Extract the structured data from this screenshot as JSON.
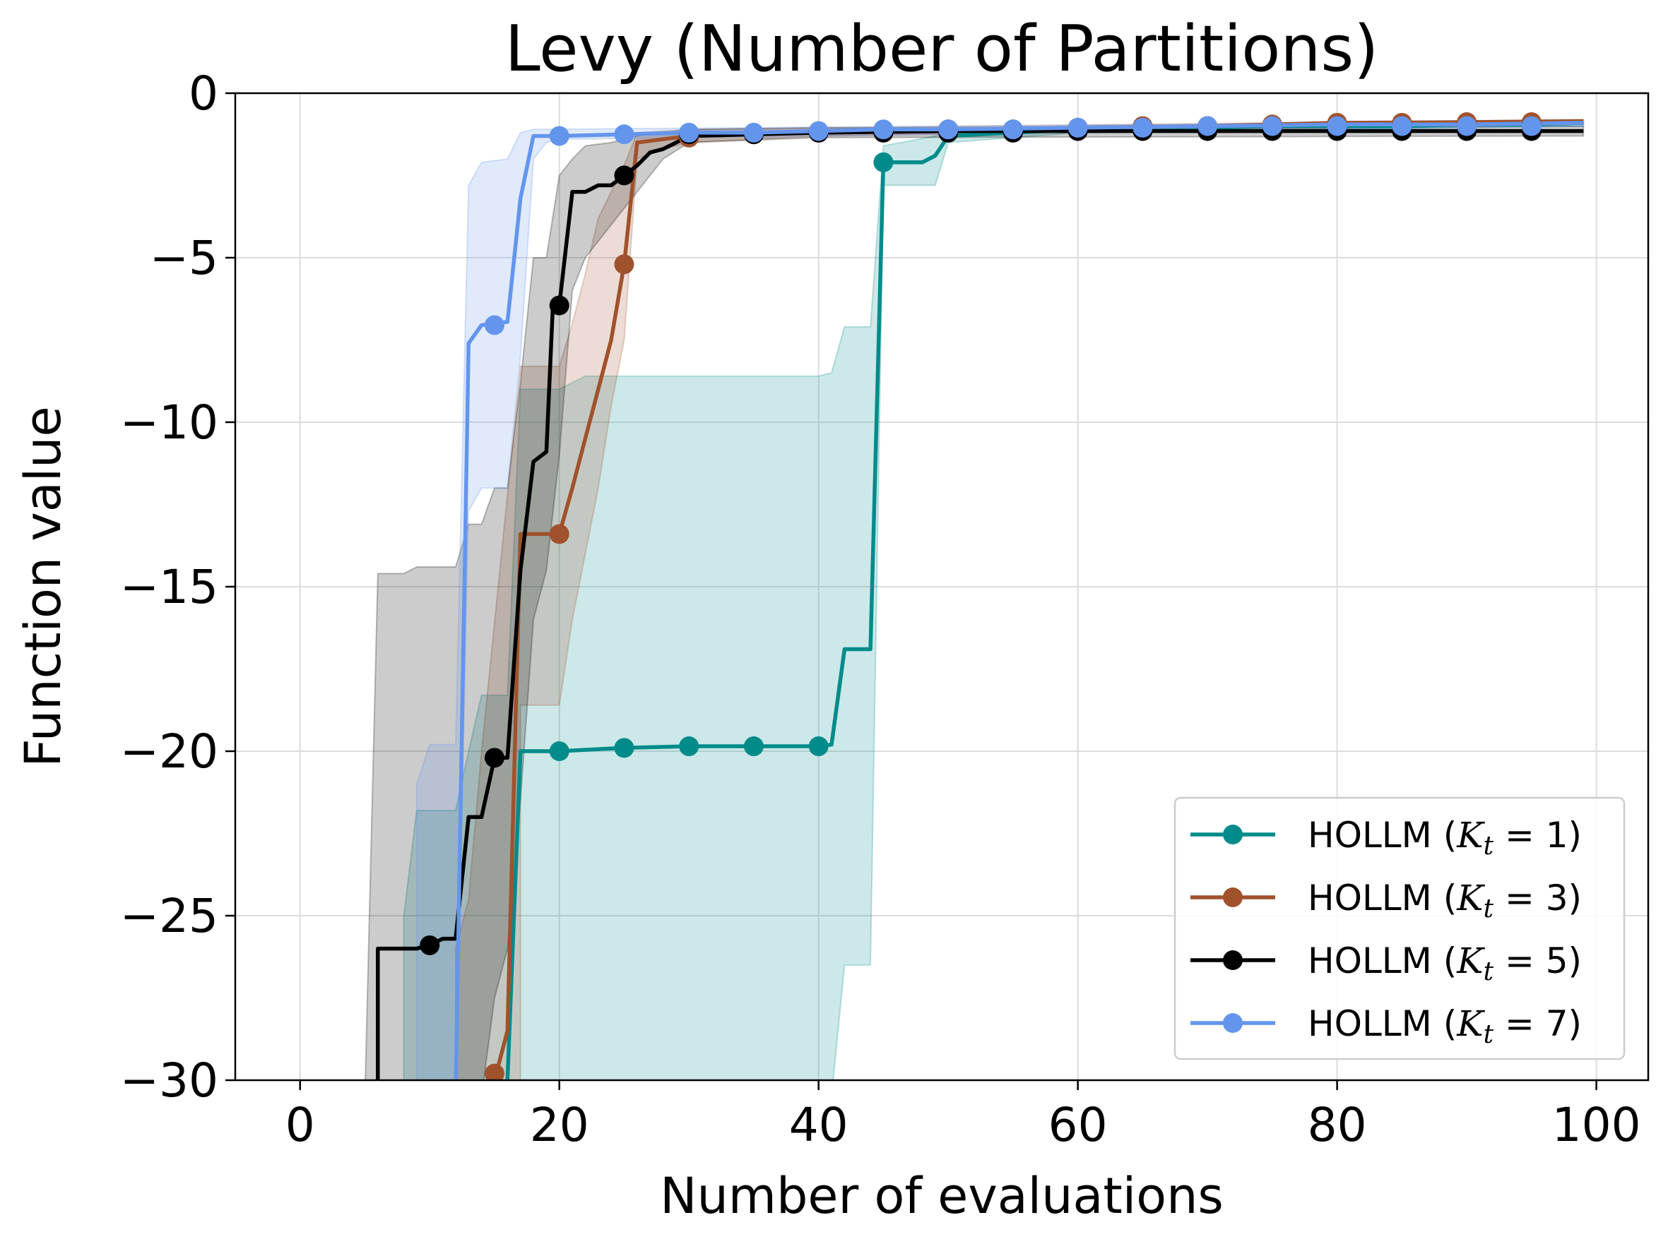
{
  "chart_data": {
    "type": "line",
    "title": "Levy (Number of Partitions)",
    "xlabel": "Number of evaluations",
    "ylabel": "Function value",
    "xlim": [
      -5,
      104
    ],
    "ylim": [
      -30,
      0
    ],
    "xticks": [
      0,
      20,
      40,
      60,
      80,
      100
    ],
    "yticks": [
      0,
      -5,
      -10,
      -15,
      -20,
      -25,
      -30
    ],
    "ytick_labels": [
      "0",
      "−5",
      "−10",
      "−15",
      "−20",
      "−25",
      "−30"
    ],
    "grid": true,
    "legend_position": "lower-right",
    "series": [
      {
        "name": "HOLLM (K_t = 1)",
        "legend_prefix": "HOLLM (",
        "legend_var": "K",
        "legend_sub": "t",
        "legend_suffix": " = 1)",
        "color": "#008b8b",
        "line": [
          [
            15.5,
            -31
          ],
          [
            16,
            -30
          ],
          [
            17,
            -20
          ],
          [
            20,
            -20
          ],
          [
            25,
            -19.9
          ],
          [
            30,
            -19.85
          ],
          [
            35,
            -19.85
          ],
          [
            40,
            -19.85
          ],
          [
            41,
            -19.8
          ],
          [
            42,
            -16.9
          ],
          [
            44,
            -16.9
          ],
          [
            45,
            -2.1
          ],
          [
            48,
            -2.1
          ],
          [
            49,
            -1.9
          ],
          [
            50,
            -1.3
          ],
          [
            55,
            -1.2
          ],
          [
            60,
            -1.1
          ],
          [
            65,
            -1.1
          ],
          [
            70,
            -1.05
          ],
          [
            75,
            -1.0
          ],
          [
            80,
            -1.0
          ],
          [
            85,
            -1.0
          ],
          [
            90,
            -0.95
          ],
          [
            95,
            -0.95
          ],
          [
            99,
            -0.9
          ]
        ],
        "markers": [
          [
            20,
            -20
          ],
          [
            25,
            -19.9
          ],
          [
            30,
            -19.85
          ],
          [
            35,
            -19.85
          ],
          [
            40,
            -19.85
          ],
          [
            45,
            -2.1
          ],
          [
            50,
            -1.1
          ],
          [
            55,
            -1.1
          ],
          [
            60,
            -1.05
          ],
          [
            65,
            -1.05
          ],
          [
            70,
            -1.0
          ],
          [
            75,
            -1.0
          ],
          [
            80,
            -1.0
          ],
          [
            85,
            -1.0
          ],
          [
            90,
            -0.95
          ],
          [
            95,
            -0.95
          ]
        ],
        "band_upper": [
          [
            8,
            -31
          ],
          [
            8,
            -25
          ],
          [
            9,
            -21.8
          ],
          [
            12,
            -21.8
          ],
          [
            13,
            -20
          ],
          [
            14,
            -18.3
          ],
          [
            16,
            -18.3
          ],
          [
            17,
            -9
          ],
          [
            20,
            -9
          ],
          [
            22,
            -8.6
          ],
          [
            40,
            -8.6
          ],
          [
            41,
            -8.5
          ],
          [
            42,
            -7.1
          ],
          [
            44,
            -7.1
          ],
          [
            45,
            -1.6
          ],
          [
            49,
            -1.3
          ],
          [
            50,
            -1.2
          ],
          [
            60,
            -1.0
          ],
          [
            99,
            -0.9
          ]
        ],
        "band_lower": [
          [
            8,
            -31
          ],
          [
            41,
            -31
          ],
          [
            42,
            -26.5
          ],
          [
            44,
            -26.5
          ],
          [
            45,
            -2.8
          ],
          [
            49,
            -2.8
          ],
          [
            50,
            -1.5
          ],
          [
            60,
            -1.2
          ],
          [
            99,
            -1.0
          ]
        ]
      },
      {
        "name": "HOLLM (K_t = 3)",
        "legend_prefix": "HOLLM (",
        "legend_var": "K",
        "legend_sub": "t",
        "legend_suffix": " = 3)",
        "color": "#a0522d",
        "line": [
          [
            14,
            -31
          ],
          [
            15,
            -30
          ],
          [
            16,
            -28.5
          ],
          [
            17,
            -13.4
          ],
          [
            20,
            -13.4
          ],
          [
            21,
            -12
          ],
          [
            22,
            -10.5
          ],
          [
            23,
            -9
          ],
          [
            24,
            -7.5
          ],
          [
            25,
            -5.2
          ],
          [
            26,
            -1.5
          ],
          [
            28,
            -1.4
          ],
          [
            30,
            -1.3
          ],
          [
            35,
            -1.25
          ],
          [
            40,
            -1.2
          ],
          [
            50,
            -1.15
          ],
          [
            60,
            -1.05
          ],
          [
            70,
            -1.0
          ],
          [
            80,
            -0.9
          ],
          [
            90,
            -0.88
          ],
          [
            99,
            -0.85
          ]
        ],
        "markers": [
          [
            15,
            -29.8
          ],
          [
            20,
            -13.4
          ],
          [
            25,
            -5.2
          ],
          [
            30,
            -1.35
          ],
          [
            35,
            -1.25
          ],
          [
            40,
            -1.2
          ],
          [
            45,
            -1.15
          ],
          [
            50,
            -1.1
          ],
          [
            55,
            -1.1
          ],
          [
            60,
            -1.05
          ],
          [
            65,
            -1.0
          ],
          [
            70,
            -1.0
          ],
          [
            75,
            -0.95
          ],
          [
            80,
            -0.9
          ],
          [
            85,
            -0.9
          ],
          [
            90,
            -0.88
          ],
          [
            95,
            -0.88
          ]
        ],
        "band_upper": [
          [
            12,
            -31
          ],
          [
            12,
            -26
          ],
          [
            13,
            -24.5
          ],
          [
            14,
            -20
          ],
          [
            17,
            -8.3
          ],
          [
            20,
            -8.3
          ],
          [
            21,
            -7
          ],
          [
            22,
            -5.5
          ],
          [
            23,
            -3.8
          ],
          [
            25,
            -2.2
          ],
          [
            26,
            -1.2
          ],
          [
            30,
            -1.1
          ],
          [
            40,
            -1.05
          ],
          [
            99,
            -0.8
          ]
        ],
        "band_lower": [
          [
            12,
            -31
          ],
          [
            17,
            -31
          ],
          [
            17,
            -18.6
          ],
          [
            20,
            -18.6
          ],
          [
            21,
            -16
          ],
          [
            22,
            -14
          ],
          [
            23,
            -12
          ],
          [
            24,
            -9.5
          ],
          [
            25,
            -7.5
          ],
          [
            26,
            -2
          ],
          [
            28,
            -1.7
          ],
          [
            30,
            -1.5
          ],
          [
            40,
            -1.3
          ],
          [
            99,
            -0.95
          ]
        ]
      },
      {
        "name": "HOLLM (K_t = 5)",
        "legend_prefix": "HOLLM (",
        "legend_var": "K",
        "legend_sub": "t",
        "legend_suffix": " = 5)",
        "color": "#000000",
        "line": [
          [
            6,
            -31
          ],
          [
            6,
            -26
          ],
          [
            9,
            -26
          ],
          [
            10,
            -25.9
          ],
          [
            11,
            -25.7
          ],
          [
            12,
            -25.7
          ],
          [
            13,
            -22
          ],
          [
            14,
            -22
          ],
          [
            15,
            -20.2
          ],
          [
            16,
            -20.2
          ],
          [
            17,
            -14.5
          ],
          [
            18,
            -11.2
          ],
          [
            19,
            -10.9
          ],
          [
            19.5,
            -6.5
          ],
          [
            20,
            -6.45
          ],
          [
            21,
            -3
          ],
          [
            22,
            -3
          ],
          [
            23,
            -2.8
          ],
          [
            24,
            -2.8
          ],
          [
            25,
            -2.5
          ],
          [
            26,
            -2.2
          ],
          [
            27,
            -1.8
          ],
          [
            28,
            -1.7
          ],
          [
            29,
            -1.5
          ],
          [
            30,
            -1.3
          ],
          [
            35,
            -1.25
          ],
          [
            40,
            -1.2
          ],
          [
            50,
            -1.15
          ],
          [
            60,
            -1.15
          ],
          [
            70,
            -1.15
          ],
          [
            80,
            -1.15
          ],
          [
            90,
            -1.15
          ],
          [
            99,
            -1.15
          ]
        ],
        "markers": [
          [
            10,
            -25.9
          ],
          [
            15,
            -20.2
          ],
          [
            20,
            -6.45
          ],
          [
            25,
            -2.5
          ],
          [
            30,
            -1.25
          ],
          [
            35,
            -1.25
          ],
          [
            40,
            -1.2
          ],
          [
            45,
            -1.2
          ],
          [
            50,
            -1.2
          ],
          [
            55,
            -1.2
          ],
          [
            60,
            -1.15
          ],
          [
            65,
            -1.15
          ],
          [
            70,
            -1.15
          ],
          [
            75,
            -1.15
          ],
          [
            80,
            -1.15
          ],
          [
            85,
            -1.15
          ],
          [
            90,
            -1.15
          ],
          [
            95,
            -1.15
          ]
        ],
        "band_upper": [
          [
            5,
            -31
          ],
          [
            6,
            -14.6
          ],
          [
            8,
            -14.6
          ],
          [
            9,
            -14.4
          ],
          [
            12,
            -14.4
          ],
          [
            13,
            -13.1
          ],
          [
            14,
            -13.1
          ],
          [
            15,
            -12
          ],
          [
            16,
            -12
          ],
          [
            17,
            -8.8
          ],
          [
            18,
            -5
          ],
          [
            19,
            -5
          ],
          [
            20,
            -2.5
          ],
          [
            21,
            -2
          ],
          [
            22,
            -1.6
          ],
          [
            24,
            -1.5
          ],
          [
            26,
            -1.3
          ],
          [
            30,
            -1.1
          ],
          [
            40,
            -1.05
          ],
          [
            99,
            -1.0
          ]
        ],
        "band_lower": [
          [
            5,
            -31
          ],
          [
            14,
            -31
          ],
          [
            15,
            -27.5
          ],
          [
            16,
            -26
          ],
          [
            17,
            -21.5
          ],
          [
            18,
            -16
          ],
          [
            19,
            -14.5
          ],
          [
            20,
            -11
          ],
          [
            21,
            -6
          ],
          [
            22,
            -5
          ],
          [
            24,
            -4
          ],
          [
            26,
            -3
          ],
          [
            28,
            -2
          ],
          [
            30,
            -1.5
          ],
          [
            40,
            -1.35
          ],
          [
            99,
            -1.3
          ]
        ]
      },
      {
        "name": "HOLLM (K_t = 7)",
        "legend_prefix": "HOLLM (",
        "legend_var": "K",
        "legend_sub": "t",
        "legend_suffix": " = 7)",
        "color": "#6495ed",
        "line": [
          [
            12,
            -31
          ],
          [
            12.5,
            -19
          ],
          [
            13,
            -7.6
          ],
          [
            14,
            -7.05
          ],
          [
            15,
            -7
          ],
          [
            16,
            -6.95
          ],
          [
            17,
            -3.2
          ],
          [
            18,
            -1.3
          ],
          [
            20,
            -1.3
          ],
          [
            25,
            -1.25
          ],
          [
            30,
            -1.2
          ],
          [
            35,
            -1.2
          ],
          [
            40,
            -1.15
          ],
          [
            45,
            -1.1
          ],
          [
            50,
            -1.1
          ],
          [
            60,
            -1.05
          ],
          [
            70,
            -1.0
          ],
          [
            80,
            -0.95
          ],
          [
            90,
            -0.95
          ],
          [
            99,
            -0.9
          ]
        ],
        "markers": [
          [
            15,
            -7.05
          ],
          [
            20,
            -1.3
          ],
          [
            25,
            -1.25
          ],
          [
            30,
            -1.2
          ],
          [
            35,
            -1.2
          ],
          [
            40,
            -1.15
          ],
          [
            45,
            -1.1
          ],
          [
            50,
            -1.1
          ],
          [
            55,
            -1.1
          ],
          [
            60,
            -1.05
          ],
          [
            65,
            -1.05
          ],
          [
            70,
            -1.0
          ],
          [
            75,
            -1.0
          ],
          [
            80,
            -1.0
          ],
          [
            85,
            -1.0
          ],
          [
            90,
            -1.0
          ],
          [
            95,
            -1.0
          ]
        ],
        "band_upper": [
          [
            9,
            -31
          ],
          [
            9,
            -21
          ],
          [
            10,
            -19.8
          ],
          [
            12,
            -19.8
          ],
          [
            13,
            -2.8
          ],
          [
            14,
            -2.1
          ],
          [
            16,
            -2
          ],
          [
            17,
            -1.2
          ],
          [
            18,
            -1.1
          ],
          [
            99,
            -0.85
          ]
        ],
        "band_lower": [
          [
            9,
            -31
          ],
          [
            12,
            -31
          ],
          [
            13,
            -12.7
          ],
          [
            14,
            -12
          ],
          [
            16,
            -12
          ],
          [
            17,
            -8
          ],
          [
            18,
            -2
          ],
          [
            19,
            -1.5
          ],
          [
            20,
            -1.4
          ],
          [
            99,
            -1.0
          ]
        ]
      }
    ]
  }
}
